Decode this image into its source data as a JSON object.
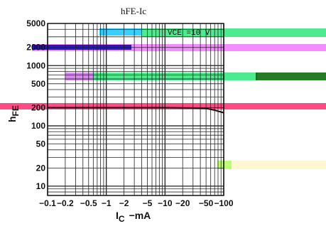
{
  "chart_data": {
    "type": "line",
    "title": "hFE-Ic",
    "xlabel": "IC −mA",
    "xlabel_main": "I",
    "xlabel_sub": "C",
    "xlabel_unit": "−mA",
    "ylabel": "hFE",
    "ylabel_main": "h",
    "ylabel_sub": "FE",
    "x_scale": "log",
    "y_scale": "log",
    "xlim": [
      0.1,
      100
    ],
    "ylim": [
      7,
      5000
    ],
    "x_ticks": [
      "−0.1",
      "−0.2",
      "−0.5",
      "−1",
      "−2",
      "−5",
      "−10",
      "−20",
      "−50",
      "−100"
    ],
    "y_ticks": [
      "10",
      "20",
      "50",
      "100",
      "200",
      "500",
      "1000",
      "2000",
      "5000"
    ],
    "grid": true,
    "annotation": "VCE =10 V",
    "series": [
      {
        "x": [
          0.1,
          0.5,
          1,
          5,
          10,
          30,
          50,
          70,
          100
        ],
        "y": [
          200,
          200,
          200,
          200,
          200,
          198,
          195,
          182,
          165
        ]
      }
    ],
    "overlay_colors": [
      "#14c8ff",
      "#0000c8",
      "#f078ff",
      "#2ee67a",
      "#006400",
      "#ff2d6e",
      "#b3ff6a",
      "#fff6c8"
    ]
  }
}
